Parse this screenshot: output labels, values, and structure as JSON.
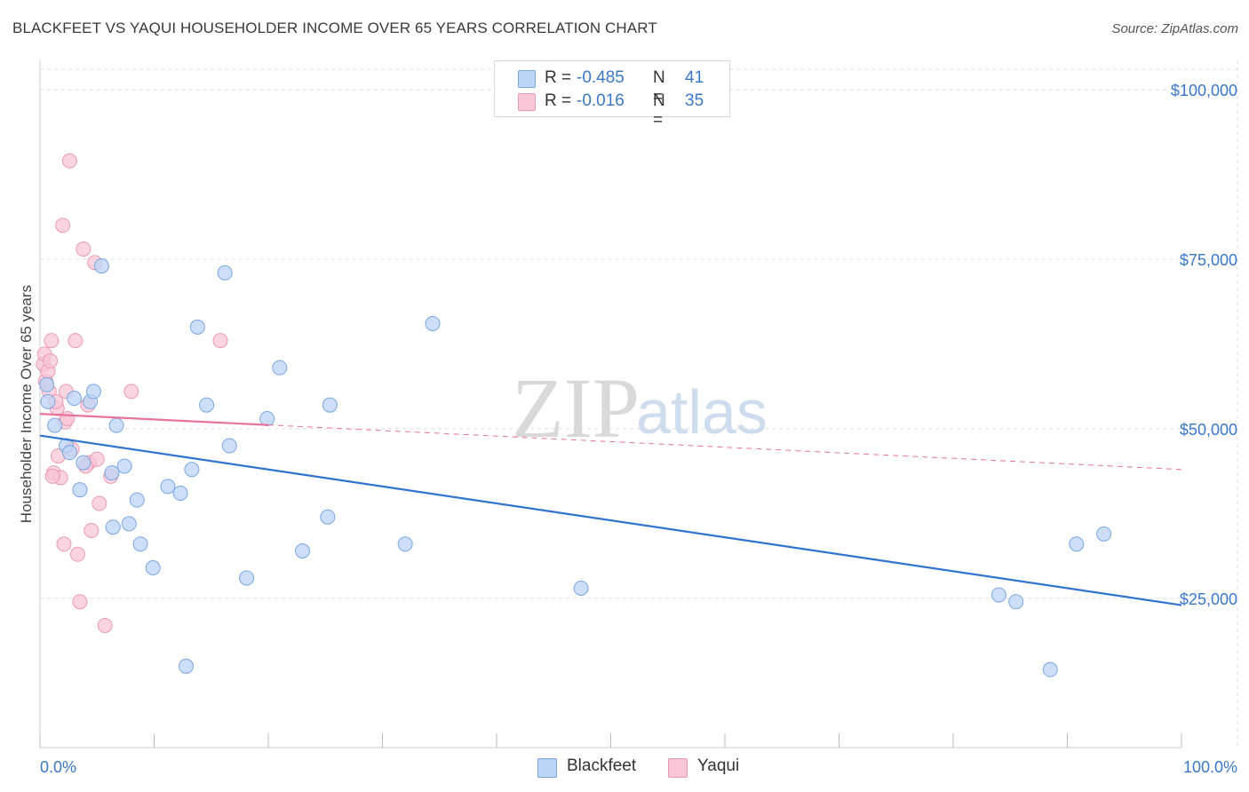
{
  "title": "BLACKFEET VS YAQUI HOUSEHOLDER INCOME OVER 65 YEARS CORRELATION CHART",
  "source": "Source: ZipAtlas.com",
  "watermark": {
    "zip": "ZIP",
    "atlas": "atlas"
  },
  "colors": {
    "blackfeet_fill": "#bcd4f5",
    "blackfeet_stroke": "#7aa6e0",
    "blackfeet_line": "#2f74d0",
    "yaqui_fill": "#f8c6d6",
    "yaqui_stroke": "#e99ab4",
    "yaqui_line": "#e8749b",
    "axis_text": "#3a78c9",
    "grid": "#dddddd"
  },
  "legend": {
    "rows": [
      {
        "r_label": "R = ",
        "r_value": "-0.485",
        "n_label": "N = ",
        "n_value": "41"
      },
      {
        "r_label": "R = ",
        "r_value": "-0.016",
        "n_label": "N = ",
        "n_value": "35"
      }
    ]
  },
  "bottom_legend": {
    "blackfeet": "Blackfeet",
    "yaqui": "Yaqui"
  },
  "chart_data": {
    "type": "scatter",
    "title": "BLACKFEET VS YAQUI HOUSEHOLDER INCOME OVER 65 YEARS CORRELATION CHART",
    "xlabel": "",
    "ylabel": "Householder Income Over 65 years",
    "xlim": [
      0,
      100
    ],
    "ylim": [
      3000,
      103000
    ],
    "x_tick_labels": {
      "left": "0.0%",
      "right": "100.0%"
    },
    "y_ticks": [
      25000,
      50000,
      75000,
      100000
    ],
    "y_tick_labels": [
      "$25,000",
      "$50,000",
      "$75,000",
      "$100,000"
    ],
    "grid": true,
    "series": [
      {
        "name": "Blackfeet",
        "points": [
          [
            0.7,
            54000
          ],
          [
            1.3,
            50500
          ],
          [
            2.3,
            47500
          ],
          [
            3.0,
            54500
          ],
          [
            3.5,
            41000
          ],
          [
            3.8,
            45000
          ],
          [
            4.4,
            54000
          ],
          [
            4.7,
            55500
          ],
          [
            5.4,
            74000
          ],
          [
            6.3,
            43500
          ],
          [
            6.4,
            35500
          ],
          [
            6.7,
            50500
          ],
          [
            7.4,
            44500
          ],
          [
            7.8,
            36000
          ],
          [
            8.5,
            39500
          ],
          [
            8.8,
            33000
          ],
          [
            9.9,
            29500
          ],
          [
            11.2,
            41500
          ],
          [
            12.3,
            40500
          ],
          [
            12.8,
            15000
          ],
          [
            13.3,
            44000
          ],
          [
            13.8,
            65000
          ],
          [
            14.6,
            53500
          ],
          [
            16.2,
            73000
          ],
          [
            16.6,
            47500
          ],
          [
            18.1,
            28000
          ],
          [
            19.9,
            51500
          ],
          [
            21.0,
            59000
          ],
          [
            23.0,
            32000
          ],
          [
            25.2,
            37000
          ],
          [
            25.4,
            53500
          ],
          [
            32.0,
            33000
          ],
          [
            34.4,
            65500
          ],
          [
            47.4,
            26500
          ],
          [
            84.0,
            25500
          ],
          [
            85.5,
            24500
          ],
          [
            88.5,
            14500
          ],
          [
            90.8,
            33000
          ],
          [
            93.2,
            34500
          ],
          [
            0.6,
            56500
          ],
          [
            2.6,
            46500
          ]
        ],
        "trend": {
          "x": [
            0,
            100
          ],
          "y": [
            49000,
            24000
          ]
        }
      },
      {
        "name": "Yaqui",
        "points": [
          [
            0.3,
            59500
          ],
          [
            0.4,
            61000
          ],
          [
            0.5,
            57000
          ],
          [
            0.7,
            58500
          ],
          [
            0.8,
            55500
          ],
          [
            1.0,
            63000
          ],
          [
            1.2,
            43500
          ],
          [
            1.5,
            53000
          ],
          [
            1.6,
            46000
          ],
          [
            1.8,
            42800
          ],
          [
            2.0,
            80000
          ],
          [
            2.1,
            33000
          ],
          [
            2.2,
            51000
          ],
          [
            2.3,
            55500
          ],
          [
            2.6,
            89500
          ],
          [
            2.8,
            47000
          ],
          [
            3.1,
            63000
          ],
          [
            3.3,
            31500
          ],
          [
            3.5,
            24500
          ],
          [
            3.8,
            76500
          ],
          [
            4.2,
            53500
          ],
          [
            4.3,
            45000
          ],
          [
            4.0,
            44500
          ],
          [
            4.5,
            35000
          ],
          [
            5.0,
            45500
          ],
          [
            5.2,
            39000
          ],
          [
            4.8,
            74500
          ],
          [
            5.7,
            21000
          ],
          [
            6.2,
            43000
          ],
          [
            8.0,
            55500
          ],
          [
            15.8,
            63000
          ],
          [
            1.4,
            54000
          ],
          [
            2.4,
            51500
          ],
          [
            0.9,
            60000
          ],
          [
            1.1,
            43000
          ]
        ],
        "trend": {
          "x": [
            0,
            100
          ],
          "y": [
            52200,
            44000
          ],
          "solid_until": 20
        }
      }
    ]
  }
}
